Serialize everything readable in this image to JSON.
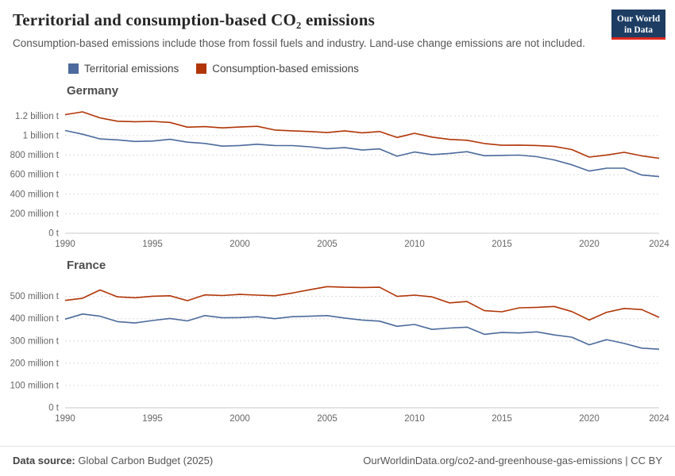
{
  "header": {
    "title": "Territorial and consumption-based CO₂ emissions",
    "subtitle": "Consumption-based emissions include those from fossil fuels and industry. Land-use change emissions are not included.",
    "logo": {
      "line1": "Our World",
      "line2": "in Data"
    }
  },
  "legend": {
    "items": [
      {
        "label": "Territorial emissions",
        "color_key": "territorial"
      },
      {
        "label": "Consumption-based emissions",
        "color_key": "consumption"
      }
    ]
  },
  "colors": {
    "territorial": "#4c6a9c",
    "consumption": "#b13507",
    "logo_bg": "#1d3d63",
    "logo_accent": "#e0271e",
    "gridline": "#dcdcdc",
    "zero_line": "#c8c8c8"
  },
  "footer": {
    "source_label": "Data source:",
    "source_value": "Global Carbon Budget (2025)",
    "link": "OurWorldinData.org/co2-and-greenhouse-gas-emissions | CC BY"
  },
  "chart_data": [
    {
      "type": "line",
      "title": "Germany",
      "x": [
        1990,
        1991,
        1992,
        1993,
        1994,
        1995,
        1996,
        1997,
        1998,
        1999,
        2000,
        2001,
        2002,
        2003,
        2004,
        2005,
        2006,
        2007,
        2008,
        2009,
        2010,
        2011,
        2012,
        2013,
        2014,
        2015,
        2016,
        2017,
        2018,
        2019,
        2020,
        2021,
        2022,
        2023,
        2024
      ],
      "xticks": [
        1990,
        1995,
        2000,
        2005,
        2010,
        2015,
        2020,
        2024
      ],
      "ylim": [
        0,
        1300
      ],
      "unit": "tonnes of CO₂ (values in million t)",
      "yticks": [
        {
          "value": 0,
          "label": "0 t"
        },
        {
          "value": 200,
          "label": "200 million t"
        },
        {
          "value": 400,
          "label": "400 million t"
        },
        {
          "value": 600,
          "label": "600 million t"
        },
        {
          "value": 800,
          "label": "800 million t"
        },
        {
          "value": 1000,
          "label": "1 billion t"
        },
        {
          "value": 1200,
          "label": "1.2 billion t"
        }
      ],
      "series": [
        {
          "name": "Territorial emissions",
          "color_key": "territorial",
          "values": [
            1052,
            1014,
            966,
            956,
            940,
            944,
            962,
            933,
            920,
            892,
            899,
            912,
            899,
            898,
            886,
            866,
            877,
            852,
            864,
            789,
            832,
            805,
            817,
            835,
            794,
            797,
            800,
            784,
            751,
            701,
            637,
            666,
            666,
            596,
            580
          ]
        },
        {
          "name": "Consumption-based emissions",
          "color_key": "consumption",
          "values": [
            1215,
            1243,
            1181,
            1147,
            1142,
            1146,
            1135,
            1086,
            1092,
            1079,
            1088,
            1095,
            1057,
            1049,
            1042,
            1031,
            1049,
            1029,
            1042,
            981,
            1024,
            985,
            961,
            952,
            919,
            901,
            903,
            899,
            889,
            857,
            780,
            801,
            829,
            793,
            768
          ]
        }
      ]
    },
    {
      "type": "line",
      "title": "France",
      "x": [
        1990,
        1991,
        1992,
        1993,
        1994,
        1995,
        1996,
        1997,
        1998,
        1999,
        2000,
        2001,
        2002,
        2003,
        2004,
        2005,
        2006,
        2007,
        2008,
        2009,
        2010,
        2011,
        2012,
        2013,
        2014,
        2015,
        2016,
        2017,
        2018,
        2019,
        2020,
        2021,
        2022,
        2023,
        2024
      ],
      "xticks": [
        1990,
        1995,
        2000,
        2005,
        2010,
        2015,
        2020,
        2024
      ],
      "ylim": [
        0,
        570
      ],
      "unit": "tonnes of CO₂ (values in million t)",
      "yticks": [
        {
          "value": 0,
          "label": "0 t"
        },
        {
          "value": 100,
          "label": "100 million t"
        },
        {
          "value": 200,
          "label": "200 million t"
        },
        {
          "value": 300,
          "label": "300 million t"
        },
        {
          "value": 400,
          "label": "400 million t"
        },
        {
          "value": 500,
          "label": "500 million t"
        }
      ],
      "series": [
        {
          "name": "Territorial emissions",
          "color_key": "territorial",
          "values": [
            398,
            421,
            411,
            387,
            381,
            392,
            401,
            390,
            414,
            404,
            405,
            409,
            400,
            409,
            411,
            414,
            403,
            394,
            389,
            366,
            374,
            352,
            358,
            362,
            330,
            338,
            336,
            341,
            327,
            317,
            283,
            306,
            289,
            268,
            263
          ]
        },
        {
          "name": "Consumption-based emissions",
          "color_key": "consumption",
          "values": [
            482,
            492,
            529,
            498,
            494,
            501,
            503,
            481,
            507,
            504,
            509,
            506,
            503,
            515,
            530,
            544,
            541,
            540,
            541,
            500,
            506,
            498,
            471,
            477,
            436,
            431,
            449,
            451,
            455,
            432,
            394,
            429,
            446,
            441,
            406
          ]
        }
      ]
    }
  ]
}
